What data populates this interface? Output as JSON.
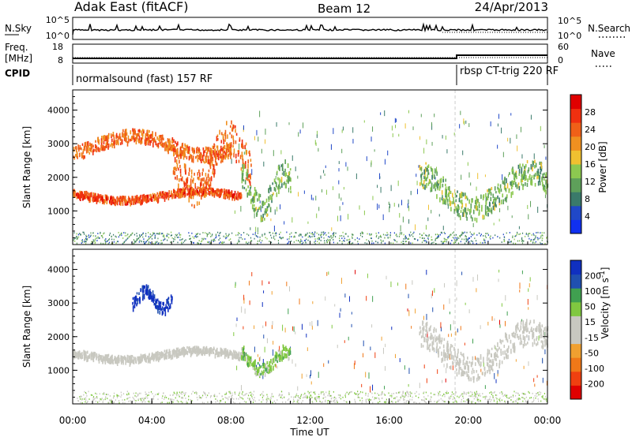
{
  "header": {
    "radar": "Adak East (fitACF)",
    "beam": "Beam 12",
    "date": "24/Apr/2013"
  },
  "colors": {
    "power_scale": [
      "#1030f0",
      "#2048c8",
      "#3a7a6a",
      "#5ea05a",
      "#8cc850",
      "#f0c030",
      "#f09020",
      "#f06018",
      "#f03010",
      "#e00000"
    ],
    "velocity_scale": [
      "#e00000",
      "#f04010",
      "#f07818",
      "#f0a030",
      "#c8c8c0",
      "#c8c8c0",
      "#80c840",
      "#40a050",
      "#2050b0",
      "#1030c0"
    ]
  },
  "chart_data": [
    {
      "panel": "noise",
      "type": "line",
      "left_label": "N.Sky",
      "right_label": "N.Search",
      "left_ticks": [
        "10^5",
        "10^0"
      ],
      "right_ticks": [
        "10^5",
        "10^0"
      ],
      "left_dotted": false,
      "right_dotted": true
    },
    {
      "panel": "frequency",
      "type": "line",
      "left_label": "Freq. [MHz]",
      "right_label": "Nave",
      "left_ticks": [
        "18",
        "8"
      ],
      "right_ticks": [
        "60",
        "0"
      ],
      "right_dotted": true
    },
    {
      "panel": "cpid",
      "type": "table",
      "label": "CPID",
      "segments": [
        {
          "start": "00:00",
          "end": "19:20",
          "text": "normalsound (fast) 157 RF"
        },
        {
          "start": "19:20",
          "end": "24:00",
          "text": "rbsp CT-trig 220 RF"
        }
      ]
    },
    {
      "panel": "power",
      "type": "heatmap",
      "ylabel": "Slant Range [km]",
      "yticks": [
        1000,
        2000,
        3000,
        4000
      ],
      "ylim": [
        0,
        4600
      ],
      "colorbar_label": "Power [dB]",
      "colorbar_ticks": [
        4,
        8,
        12,
        16,
        20,
        24,
        28
      ],
      "features": [
        {
          "start": "00:00",
          "end": "08:30",
          "range_km": [
            1300,
            1700
          ],
          "value": 24
        },
        {
          "start": "00:00",
          "end": "08:00",
          "range_km": [
            2600,
            3400
          ],
          "value": 22
        },
        {
          "start": "05:00",
          "end": "09:00",
          "range_km": [
            1400,
            3500
          ],
          "value": 22
        },
        {
          "start": "08:30",
          "end": "11:00",
          "range_km": [
            900,
            2400
          ],
          "value": 12
        },
        {
          "start": "17:30",
          "end": "24:00",
          "range_km": [
            900,
            2400
          ],
          "value": 12
        }
      ]
    },
    {
      "panel": "velocity",
      "type": "heatmap",
      "ylabel": "Slant Range [km]",
      "yticks": [
        1000,
        2000,
        3000,
        4000
      ],
      "ylim": [
        0,
        4600
      ],
      "xlabel": "Time UT",
      "xticks": [
        "00:00",
        "04:00",
        "08:00",
        "12:00",
        "16:00",
        "20:00",
        "00:00"
      ],
      "colorbar_label": "Velocity [m s^-1]",
      "colorbar_ticks": [
        200,
        100,
        50,
        15,
        -15,
        -50,
        -100,
        -200
      ],
      "features": [
        {
          "start": "00:00",
          "end": "08:30",
          "range_km": [
            1300,
            1700
          ],
          "value": 0
        },
        {
          "start": "03:00",
          "end": "05:00",
          "range_km": [
            2800,
            3500
          ],
          "value": 180
        },
        {
          "start": "08:30",
          "end": "11:00",
          "range_km": [
            900,
            1700
          ],
          "value": 60
        },
        {
          "start": "17:30",
          "end": "24:00",
          "range_km": [
            900,
            2400
          ],
          "value": 0
        }
      ]
    }
  ]
}
